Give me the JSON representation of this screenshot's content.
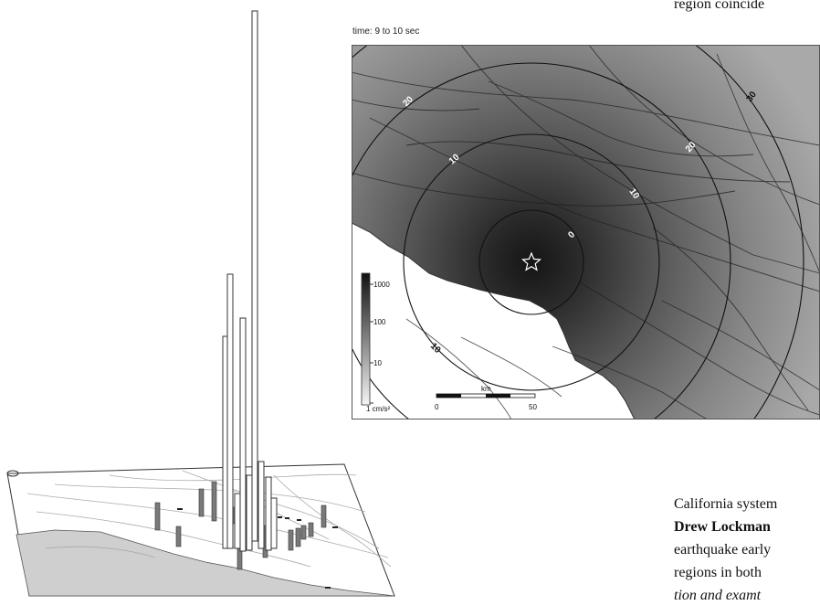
{
  "map": {
    "caption": "time: 9 to 10 sec",
    "contour_labels": [
      "20",
      "10",
      "10",
      "0",
      "20",
      "30",
      "10"
    ],
    "legend": {
      "ticks": [
        "1000",
        "100",
        "10",
        "1 cm/s²"
      ]
    },
    "scale_bar": {
      "unit": "km",
      "ticks": [
        "0",
        "50"
      ]
    },
    "epicenter_icon": "star-icon"
  },
  "histogram3d": {
    "icon": "north-arrow-icon"
  },
  "text": {
    "top_line": "region coincide",
    "line1": "California system",
    "line2_bold": "Drew Lockman",
    "line3": "earthquake early",
    "line4": "regions in both",
    "line5_italic": "tion and examt"
  }
}
